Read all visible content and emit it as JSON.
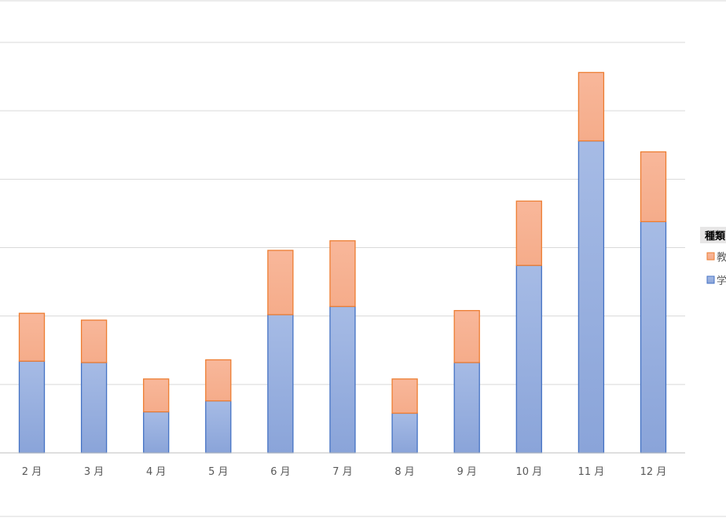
{
  "chart_data": {
    "type": "bar",
    "stacked": true,
    "categories": [
      "2 月",
      "3 月",
      "4 月",
      "5 月",
      "6 月",
      "7 月",
      "8 月",
      "9 月",
      "10 月",
      "11 月",
      "12 月"
    ],
    "series": [
      {
        "name": "学",
        "values": [
          67,
          66,
          30,
          38,
          101,
          107,
          29,
          66,
          137,
          228,
          169
        ],
        "color": "#8EA9DB",
        "stroke": "#4472C4"
      },
      {
        "name": "教",
        "values": [
          35,
          31,
          24,
          30,
          47,
          48,
          25,
          38,
          47,
          50,
          51
        ],
        "color": "#F8B08E",
        "stroke": "#ED7D31"
      }
    ],
    "legend": {
      "title": "種類",
      "position": "right"
    },
    "ylim": [
      0,
      300
    ],
    "grid": true
  }
}
